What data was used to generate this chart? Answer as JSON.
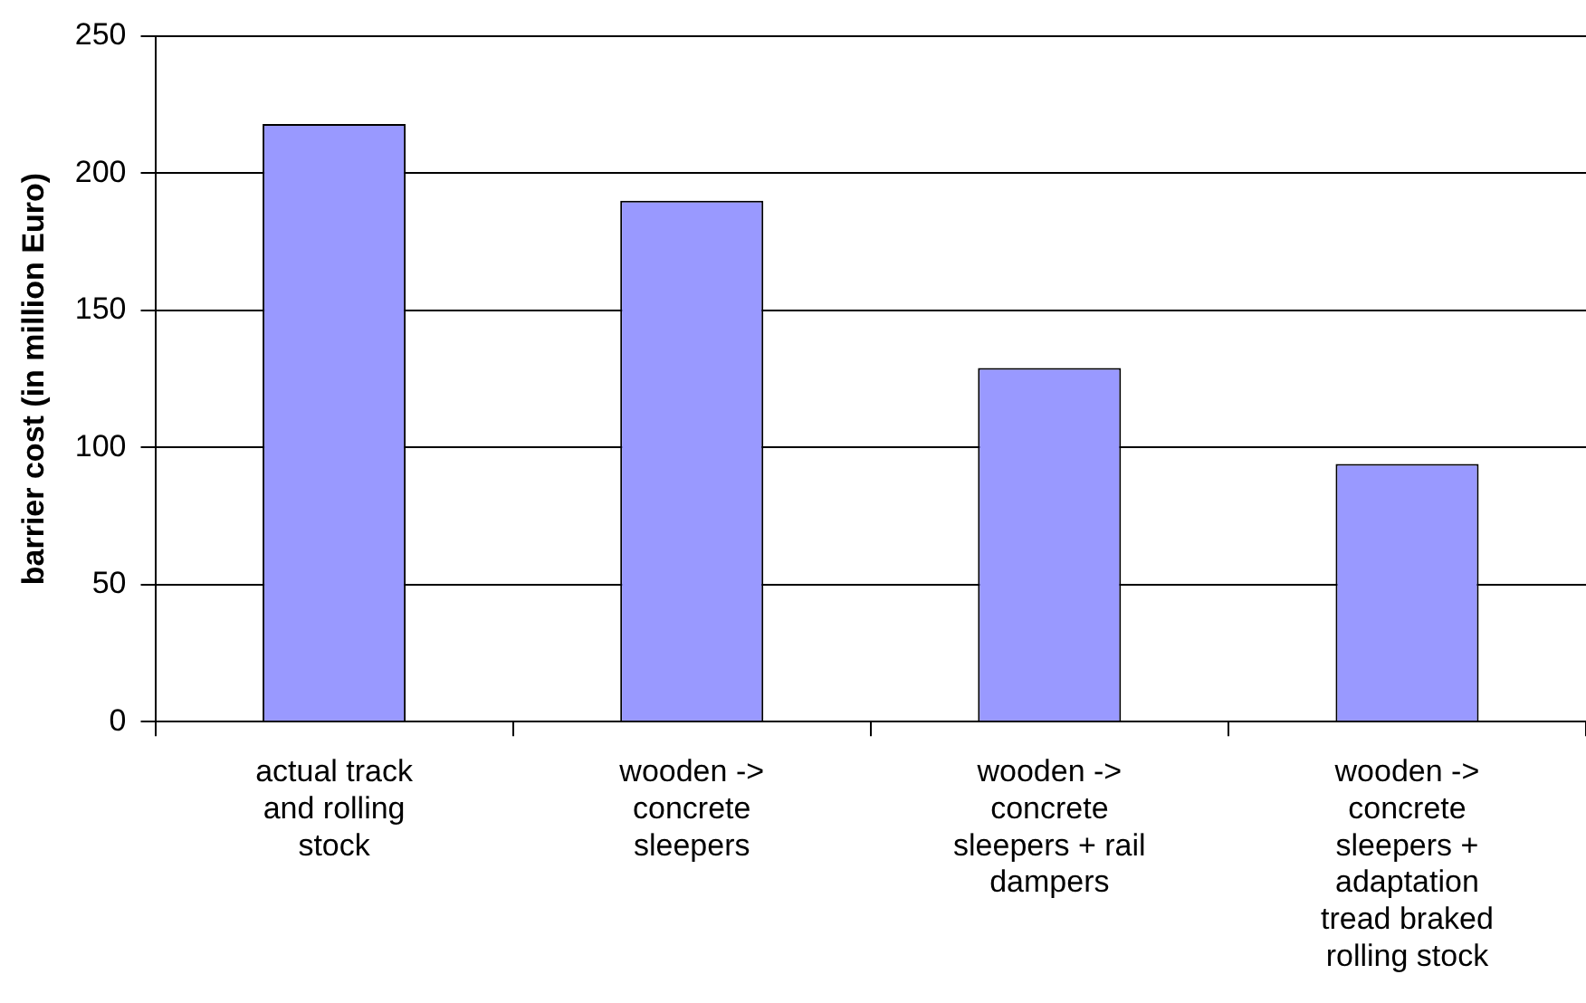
{
  "chart_data": {
    "type": "bar",
    "ylabel": "barrier cost (in million Euro)",
    "categories": [
      "actual track and rolling stock",
      "wooden -> concrete sleepers",
      "wooden -> concrete sleepers + rail dampers",
      "wooden -> concrete sleepers + adaptation tread braked rolling stock"
    ],
    "values": [
      218,
      190,
      129,
      94
    ],
    "color": "#9999ff",
    "ylim": [
      0,
      250
    ],
    "yticks": [
      0,
      50,
      100,
      150,
      200,
      250
    ],
    "grid": "y"
  }
}
